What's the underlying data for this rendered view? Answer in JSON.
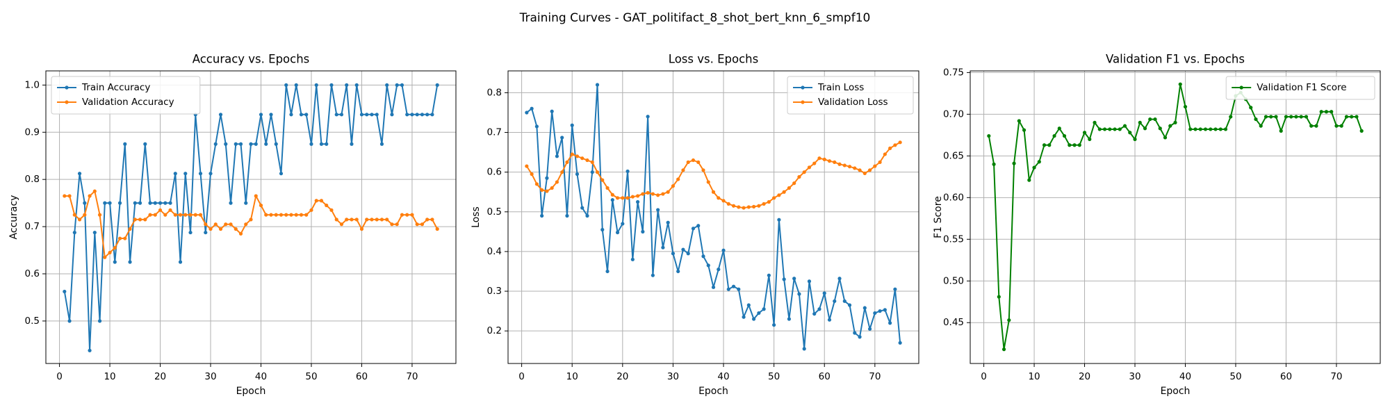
{
  "suptitle": "Training Curves - GAT_politifact_8_shot_bert_knn_6_smpf10",
  "colors": {
    "blue": "#1f77b4",
    "orange": "#ff7f0e",
    "green": "#008000",
    "grid": "#b0b0b0"
  },
  "chart_data": [
    {
      "type": "line",
      "title": "Accuracy vs. Epochs",
      "xlabel": "Epoch",
      "ylabel": "Accuracy",
      "xlim": [
        -2.7,
        78.7
      ],
      "ylim": [
        0.41,
        1.03
      ],
      "xticks": [
        0,
        10,
        20,
        30,
        40,
        50,
        60,
        70
      ],
      "yticks": [
        0.5,
        0.6,
        0.7,
        0.8,
        0.9,
        1.0
      ],
      "ytick_labels": [
        "0.5",
        "0.6",
        "0.7",
        "0.8",
        "0.9",
        "1.0"
      ],
      "grid": true,
      "legend_loc": "upper-left",
      "series": [
        {
          "name": "Train Accuracy",
          "color": "#1f77b4",
          "values": [
            0.5625,
            0.5,
            0.6875,
            0.8125,
            0.75,
            0.4375,
            0.6875,
            0.5,
            0.75,
            0.75,
            0.625,
            0.75,
            0.875,
            0.625,
            0.75,
            0.75,
            0.875,
            0.75,
            0.75,
            0.75,
            0.75,
            0.75,
            0.8125,
            0.625,
            0.8125,
            0.6875,
            0.9375,
            0.8125,
            0.6875,
            0.8125,
            0.875,
            0.9375,
            0.875,
            0.75,
            0.875,
            0.875,
            0.75,
            0.875,
            0.875,
            0.9375,
            0.875,
            0.9375,
            0.875,
            0.8125,
            1.0,
            0.9375,
            1.0,
            0.9375,
            0.9375,
            0.875,
            1.0,
            0.875,
            0.875,
            1.0,
            0.9375,
            0.9375,
            1.0,
            0.875,
            1.0,
            0.9375,
            0.9375,
            0.9375,
            0.9375,
            0.875,
            1.0,
            0.9375,
            1.0,
            1.0,
            0.9375,
            0.9375,
            0.9375,
            0.9375,
            0.9375,
            0.9375,
            1.0
          ]
        },
        {
          "name": "Validation Accuracy",
          "color": "#ff7f0e",
          "values": [
            0.765,
            0.765,
            0.725,
            0.715,
            0.725,
            0.765,
            0.775,
            0.725,
            0.635,
            0.645,
            0.655,
            0.675,
            0.675,
            0.695,
            0.715,
            0.715,
            0.715,
            0.725,
            0.725,
            0.735,
            0.725,
            0.735,
            0.725,
            0.725,
            0.725,
            0.725,
            0.725,
            0.725,
            0.705,
            0.695,
            0.705,
            0.695,
            0.705,
            0.705,
            0.695,
            0.685,
            0.705,
            0.715,
            0.765,
            0.745,
            0.725,
            0.725,
            0.725,
            0.725,
            0.725,
            0.725,
            0.725,
            0.725,
            0.725,
            0.735,
            0.755,
            0.755,
            0.745,
            0.735,
            0.715,
            0.705,
            0.715,
            0.715,
            0.715,
            0.695,
            0.715,
            0.715,
            0.715,
            0.715,
            0.715,
            0.705,
            0.705,
            0.725,
            0.725,
            0.725,
            0.705,
            0.705,
            0.715,
            0.715,
            0.695
          ]
        }
      ]
    },
    {
      "type": "line",
      "title": "Loss vs. Epochs",
      "xlabel": "Epoch",
      "ylabel": "Loss",
      "xlim": [
        -2.7,
        78.7
      ],
      "ylim": [
        0.118,
        0.855
      ],
      "xticks": [
        0,
        10,
        20,
        30,
        40,
        50,
        60,
        70
      ],
      "yticks": [
        0.2,
        0.3,
        0.4,
        0.5,
        0.6,
        0.7,
        0.8
      ],
      "ytick_labels": [
        "0.2",
        "0.3",
        "0.4",
        "0.5",
        "0.6",
        "0.7",
        "0.8"
      ],
      "grid": true,
      "legend_loc": "upper-right",
      "series": [
        {
          "name": "Train Loss",
          "color": "#1f77b4",
          "values": [
            0.75,
            0.76,
            0.715,
            0.49,
            0.585,
            0.753,
            0.64,
            0.687,
            0.49,
            0.718,
            0.595,
            0.51,
            0.49,
            0.6,
            0.82,
            0.455,
            0.35,
            0.53,
            0.448,
            0.47,
            0.602,
            0.38,
            0.525,
            0.45,
            0.74,
            0.34,
            0.505,
            0.41,
            0.473,
            0.395,
            0.35,
            0.405,
            0.395,
            0.458,
            0.465,
            0.388,
            0.365,
            0.31,
            0.355,
            0.403,
            0.305,
            0.312,
            0.305,
            0.235,
            0.265,
            0.23,
            0.245,
            0.255,
            0.34,
            0.215,
            0.48,
            0.33,
            0.23,
            0.332,
            0.293,
            0.155,
            0.325,
            0.243,
            0.255,
            0.295,
            0.228,
            0.275,
            0.332,
            0.275,
            0.265,
            0.195,
            0.185,
            0.258,
            0.205,
            0.245,
            0.25,
            0.253,
            0.22,
            0.305,
            0.17
          ]
        },
        {
          "name": "Validation Loss",
          "color": "#ff7f0e",
          "values": [
            0.615,
            0.595,
            0.57,
            0.555,
            0.552,
            0.56,
            0.575,
            0.6,
            0.625,
            0.645,
            0.64,
            0.635,
            0.63,
            0.625,
            0.6,
            0.58,
            0.56,
            0.543,
            0.535,
            0.535,
            0.535,
            0.538,
            0.54,
            0.545,
            0.548,
            0.545,
            0.542,
            0.545,
            0.55,
            0.565,
            0.582,
            0.605,
            0.625,
            0.63,
            0.625,
            0.605,
            0.575,
            0.55,
            0.535,
            0.528,
            0.52,
            0.515,
            0.512,
            0.51,
            0.512,
            0.513,
            0.515,
            0.52,
            0.525,
            0.535,
            0.542,
            0.55,
            0.56,
            0.572,
            0.588,
            0.6,
            0.612,
            0.622,
            0.635,
            0.632,
            0.628,
            0.625,
            0.62,
            0.617,
            0.614,
            0.61,
            0.605,
            0.597,
            0.605,
            0.615,
            0.625,
            0.645,
            0.66,
            0.668,
            0.675
          ]
        }
      ]
    },
    {
      "type": "line",
      "title": "Validation F1 vs. Epochs",
      "xlabel": "Epoch",
      "ylabel": "F1 Score",
      "xlim": [
        -2.7,
        78.7
      ],
      "ylim": [
        0.401,
        0.752
      ],
      "xticks": [
        0,
        10,
        20,
        30,
        40,
        50,
        60,
        70
      ],
      "yticks": [
        0.45,
        0.5,
        0.55,
        0.6,
        0.65,
        0.7,
        0.75
      ],
      "ytick_labels": [
        "0.45",
        "0.50",
        "0.55",
        "0.60",
        "0.65",
        "0.70",
        "0.75"
      ],
      "grid": true,
      "legend_loc": "upper-right",
      "series": [
        {
          "name": "Validation F1 Score",
          "color": "#008000",
          "values": [
            0.674,
            0.64,
            0.481,
            0.418,
            0.453,
            0.641,
            0.692,
            0.681,
            0.621,
            0.636,
            0.643,
            0.663,
            0.663,
            0.674,
            0.683,
            0.674,
            0.663,
            0.663,
            0.663,
            0.678,
            0.67,
            0.69,
            0.682,
            0.682,
            0.682,
            0.682,
            0.682,
            0.686,
            0.678,
            0.67,
            0.69,
            0.683,
            0.694,
            0.694,
            0.683,
            0.672,
            0.686,
            0.69,
            0.736,
            0.709,
            0.682,
            0.682,
            0.682,
            0.682,
            0.682,
            0.682,
            0.682,
            0.682,
            0.697,
            0.722,
            0.726,
            0.718,
            0.708,
            0.694,
            0.686,
            0.697,
            0.697,
            0.697,
            0.68,
            0.697,
            0.697,
            0.697,
            0.697,
            0.697,
            0.686,
            0.686,
            0.703,
            0.703,
            0.703,
            0.686,
            0.686,
            0.697,
            0.697,
            0.697,
            0.68
          ]
        }
      ]
    }
  ]
}
